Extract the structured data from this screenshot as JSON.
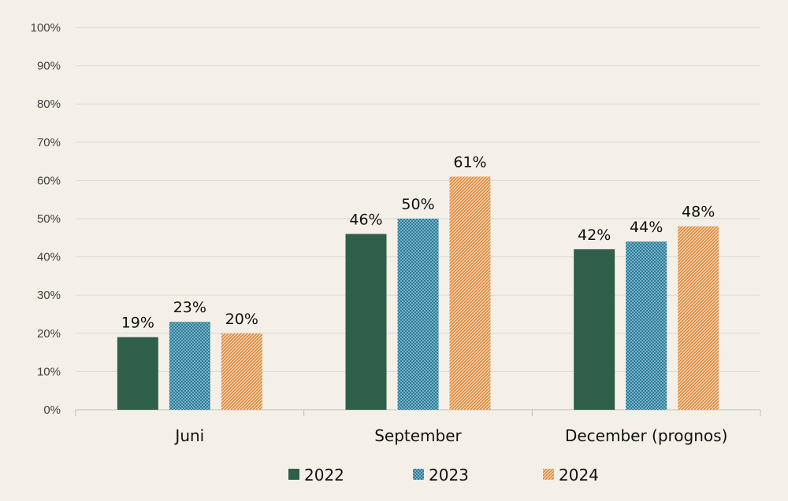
{
  "chart_data": {
    "type": "bar",
    "categories": [
      "Juni",
      "September",
      "December (prognos)"
    ],
    "series": [
      {
        "name": "2022",
        "values": [
          19,
          46,
          42
        ],
        "labels": [
          "19%",
          "46%",
          "42%"
        ],
        "color": "#2f5f4b",
        "pattern": "solid"
      },
      {
        "name": "2023",
        "values": [
          23,
          50,
          44
        ],
        "labels": [
          "23%",
          "50%",
          "44%"
        ],
        "color": "#2c7f9d",
        "pattern": "dots"
      },
      {
        "name": "2024",
        "values": [
          20,
          61,
          48
        ],
        "labels": [
          "20%",
          "61%",
          "48%"
        ],
        "color": "#e08a3c",
        "pattern": "diagonal"
      }
    ],
    "yticks": [
      "0%",
      "10%",
      "20%",
      "30%",
      "40%",
      "50%",
      "60%",
      "70%",
      "80%",
      "90%",
      "100%"
    ],
    "ylim": [
      0,
      100
    ],
    "grid": true,
    "legend": "bottom",
    "background": "#f4f0e8",
    "gridColor": "#d9d9d9",
    "title": "",
    "xlabel": "",
    "ylabel": ""
  }
}
